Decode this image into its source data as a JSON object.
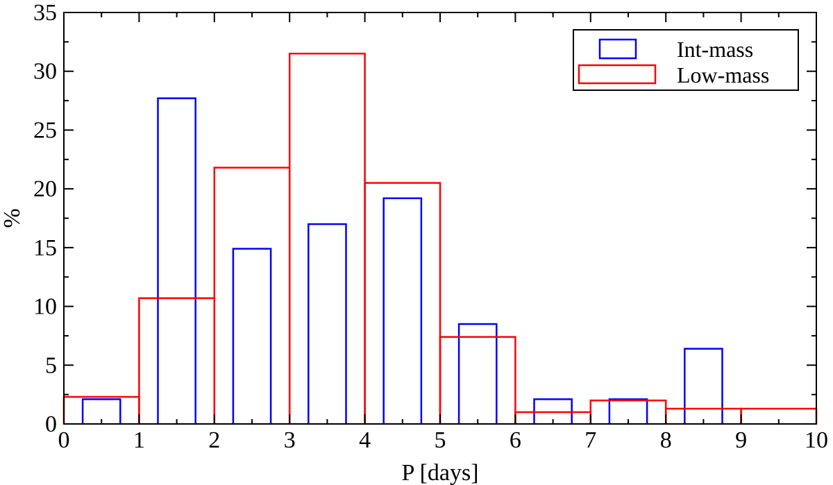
{
  "chart_data": {
    "type": "bar",
    "xlabel": "P [days]",
    "ylabel": "%",
    "xlim": [
      0,
      10
    ],
    "ylim": [
      0,
      35
    ],
    "x_ticks": [
      "0",
      "1",
      "2",
      "3",
      "4",
      "5",
      "6",
      "7",
      "8",
      "9",
      "10"
    ],
    "y_ticks": [
      "0",
      "5",
      "10",
      "15",
      "20",
      "25",
      "30",
      "35"
    ],
    "legend_position": "top-right",
    "series": [
      {
        "name": "Int-mass",
        "color": "#0000ff",
        "style": "narrow-outline-bars",
        "x": [
          0.5,
          1.5,
          2.5,
          3.5,
          4.5,
          5.5,
          6.5,
          7.5,
          8.5
        ],
        "values": [
          2.1,
          27.7,
          14.9,
          17.0,
          19.2,
          8.5,
          2.1,
          2.1,
          6.4
        ]
      },
      {
        "name": "Low-mass",
        "color": "#ff0000",
        "style": "step-histogram",
        "bin_edges": [
          0,
          1,
          2,
          3,
          4,
          5,
          6,
          7,
          8,
          9,
          10
        ],
        "values": [
          2.3,
          10.7,
          21.8,
          31.5,
          20.5,
          7.4,
          1.0,
          2.0,
          1.3,
          1.3
        ]
      }
    ]
  }
}
